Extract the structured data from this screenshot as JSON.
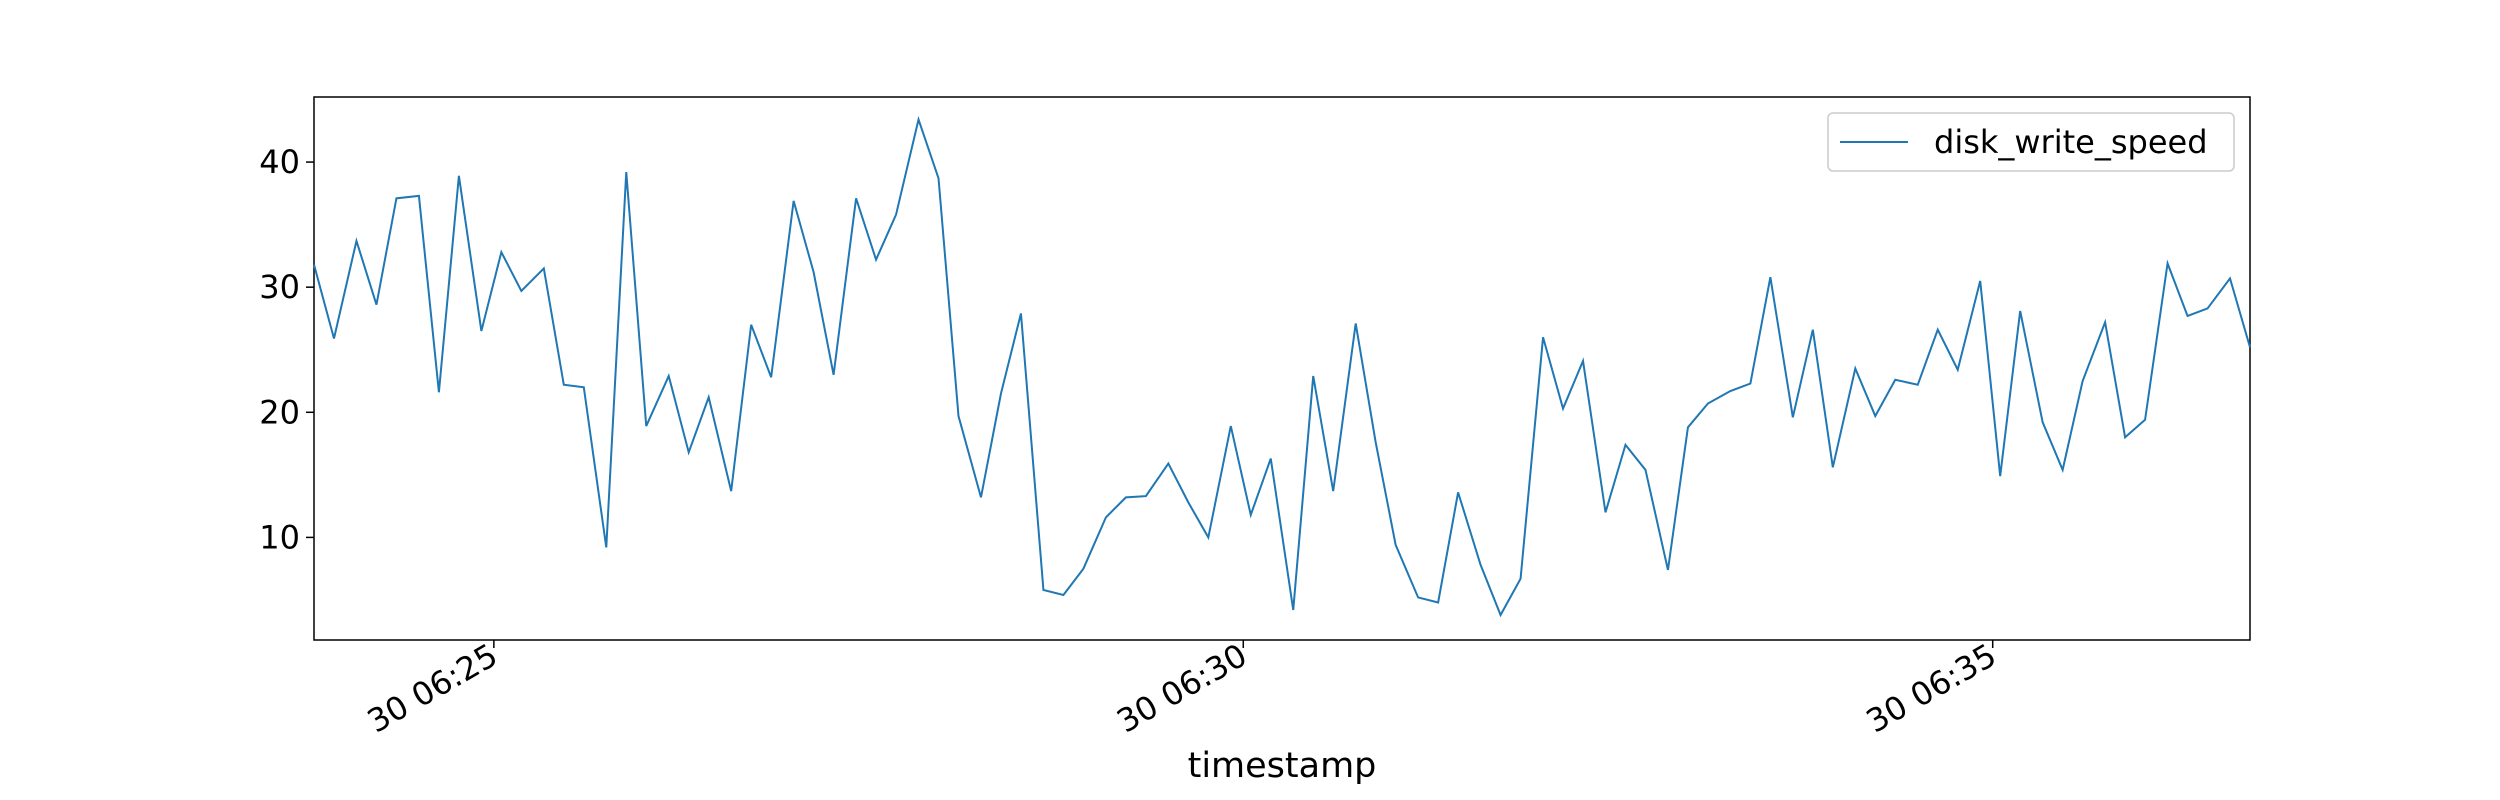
{
  "chart_data": {
    "type": "line",
    "x_label": "timestamp",
    "xlim": [
      "30 06:23:48",
      "30 06:36:43"
    ],
    "xticks": [
      "30 06:25",
      "30 06:30",
      "30 06:35"
    ],
    "ylim": [
      1.8,
      45.2
    ],
    "yticks": [
      10,
      20,
      30,
      40
    ],
    "legend": "upper right",
    "x": [
      "30 06:23:48",
      "30 06:23:56",
      "30 06:24:05",
      "30 06:24:13",
      "30 06:24:21",
      "30 06:24:30",
      "30 06:24:38",
      "30 06:24:46",
      "30 06:24:55",
      "30 06:25:03",
      "30 06:25:11",
      "30 06:25:20",
      "30 06:25:28",
      "30 06:25:36",
      "30 06:25:45",
      "30 06:25:53",
      "30 06:26:01",
      "30 06:26:10",
      "30 06:26:18",
      "30 06:26:26",
      "30 06:26:35",
      "30 06:26:43",
      "30 06:26:51",
      "30 06:27:00",
      "30 06:27:08",
      "30 06:27:16",
      "30 06:27:25",
      "30 06:27:33",
      "30 06:27:41",
      "30 06:27:50",
      "30 06:27:58",
      "30 06:28:06",
      "30 06:28:15",
      "30 06:28:23",
      "30 06:28:31",
      "30 06:28:40",
      "30 06:28:48",
      "30 06:28:56",
      "30 06:29:05",
      "30 06:29:13",
      "30 06:29:21",
      "30 06:29:30",
      "30 06:29:38",
      "30 06:29:46",
      "30 06:29:55",
      "30 06:30:03",
      "30 06:30:11",
      "30 06:30:20",
      "30 06:30:28",
      "30 06:30:36",
      "30 06:30:45",
      "30 06:30:53",
      "30 06:31:01",
      "30 06:31:10",
      "30 06:31:18",
      "30 06:31:26",
      "30 06:31:35",
      "30 06:31:43",
      "30 06:31:51",
      "30 06:32:00",
      "30 06:32:08",
      "30 06:32:16",
      "30 06:32:25",
      "30 06:32:33",
      "30 06:32:41",
      "30 06:32:50",
      "30 06:32:58",
      "30 06:33:06",
      "30 06:33:15",
      "30 06:33:23",
      "30 06:33:31",
      "30 06:33:40",
      "30 06:33:48",
      "30 06:33:56",
      "30 06:34:05",
      "30 06:34:13",
      "30 06:34:21",
      "30 06:34:30",
      "30 06:34:38",
      "30 06:34:46",
      "30 06:34:55",
      "30 06:35:03",
      "30 06:35:11",
      "30 06:35:20",
      "30 06:35:28",
      "30 06:35:36",
      "30 06:35:45",
      "30 06:35:53",
      "30 06:36:01",
      "30 06:36:10",
      "30 06:36:18",
      "30 06:36:26",
      "30 06:36:35",
      "30 06:36:43"
    ],
    "series": [
      {
        "name": "disk_write_speed",
        "color": "#1f77b4",
        "values": [
          31.8,
          25.9,
          33.7,
          28.6,
          37.1,
          37.3,
          21.6,
          38.9,
          26.5,
          32.8,
          29.7,
          31.5,
          22.2,
          22.0,
          9.2,
          39.2,
          18.9,
          22.9,
          16.8,
          21.2,
          13.7,
          27.0,
          22.8,
          36.9,
          31.2,
          23.0,
          37.1,
          32.2,
          35.8,
          43.4,
          38.7,
          19.7,
          13.2,
          21.5,
          27.9,
          5.8,
          5.4,
          7.5,
          11.6,
          13.2,
          13.3,
          15.9,
          12.8,
          10.0,
          18.9,
          11.8,
          16.3,
          4.2,
          22.9,
          13.7,
          27.1,
          17.6,
          9.4,
          5.2,
          4.8,
          13.6,
          7.8,
          3.8,
          6.7,
          26.0,
          20.3,
          24.1,
          12.0,
          17.4,
          15.4,
          7.4,
          18.8,
          20.7,
          21.7,
          22.3,
          30.8,
          19.6,
          26.6,
          15.6,
          23.5,
          19.7,
          22.6,
          22.2,
          26.6,
          23.4,
          30.5,
          14.9,
          28.1,
          19.2,
          15.4,
          22.5,
          27.2,
          18.0,
          19.4,
          31.9,
          27.7,
          28.3,
          30.7,
          25.2
        ]
      }
    ]
  }
}
